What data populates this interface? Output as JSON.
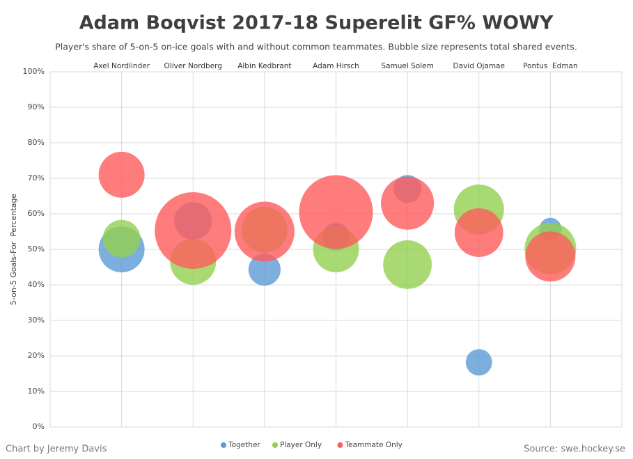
{
  "chart_data": {
    "type": "bubble",
    "title": "Adam Boqvist 2017-18 Superelit GF% WOWY",
    "subtitle": "Player's share of 5-on-5 on-ice goals with and without common teammates. Bubble size represents total shared events.",
    "y_label": "5-on-5 Goals-For  Percentage",
    "categories": [
      "Axel Nordlinder",
      "Oliver Nordberg",
      "Albin Kedbrant",
      "Adam Hirsch",
      "Samuel Solem",
      "David Ojamae",
      "Pontus  Edman"
    ],
    "series": [
      {
        "name": "Together",
        "color": "#5b9bd5",
        "values": [
          50,
          58,
          44.3,
          53.5,
          67,
          18.2,
          55.7
        ],
        "sizes": [
          100,
          67,
          49,
          37,
          37,
          33,
          24
        ]
      },
      {
        "name": "Player Only",
        "color": "#92d050",
        "values": [
          53,
          46.5,
          55.5,
          50,
          45.7,
          61.2,
          50.2
        ],
        "sizes": [
          67,
          100,
          100,
          100,
          112,
          119,
          126
        ]
      },
      {
        "name": "Teammate Only",
        "color": "#ff5b5b",
        "values": [
          71,
          55.3,
          55,
          60.5,
          63,
          54.7,
          48
        ],
        "sizes": [
          100,
          278,
          170,
          258,
          133,
          112,
          119
        ]
      }
    ],
    "ylim": [
      0,
      100
    ],
    "yticks": [
      {
        "value": 0,
        "label": "0%"
      },
      {
        "value": 10,
        "label": "10%"
      },
      {
        "value": 20,
        "label": "20%"
      },
      {
        "value": 30,
        "label": "30%"
      },
      {
        "value": 40,
        "label": "40%"
      },
      {
        "value": 50,
        "label": "50%"
      },
      {
        "value": 60,
        "label": "60%"
      },
      {
        "value": 70,
        "label": "70%"
      },
      {
        "value": 80,
        "label": "80%"
      },
      {
        "value": 90,
        "label": "90%"
      },
      {
        "value": 100,
        "label": "100%"
      }
    ],
    "grid": true,
    "legend": "bottom",
    "credit": "Chart by Jeremy Davis",
    "source": "Source: swe.hockey.se"
  }
}
